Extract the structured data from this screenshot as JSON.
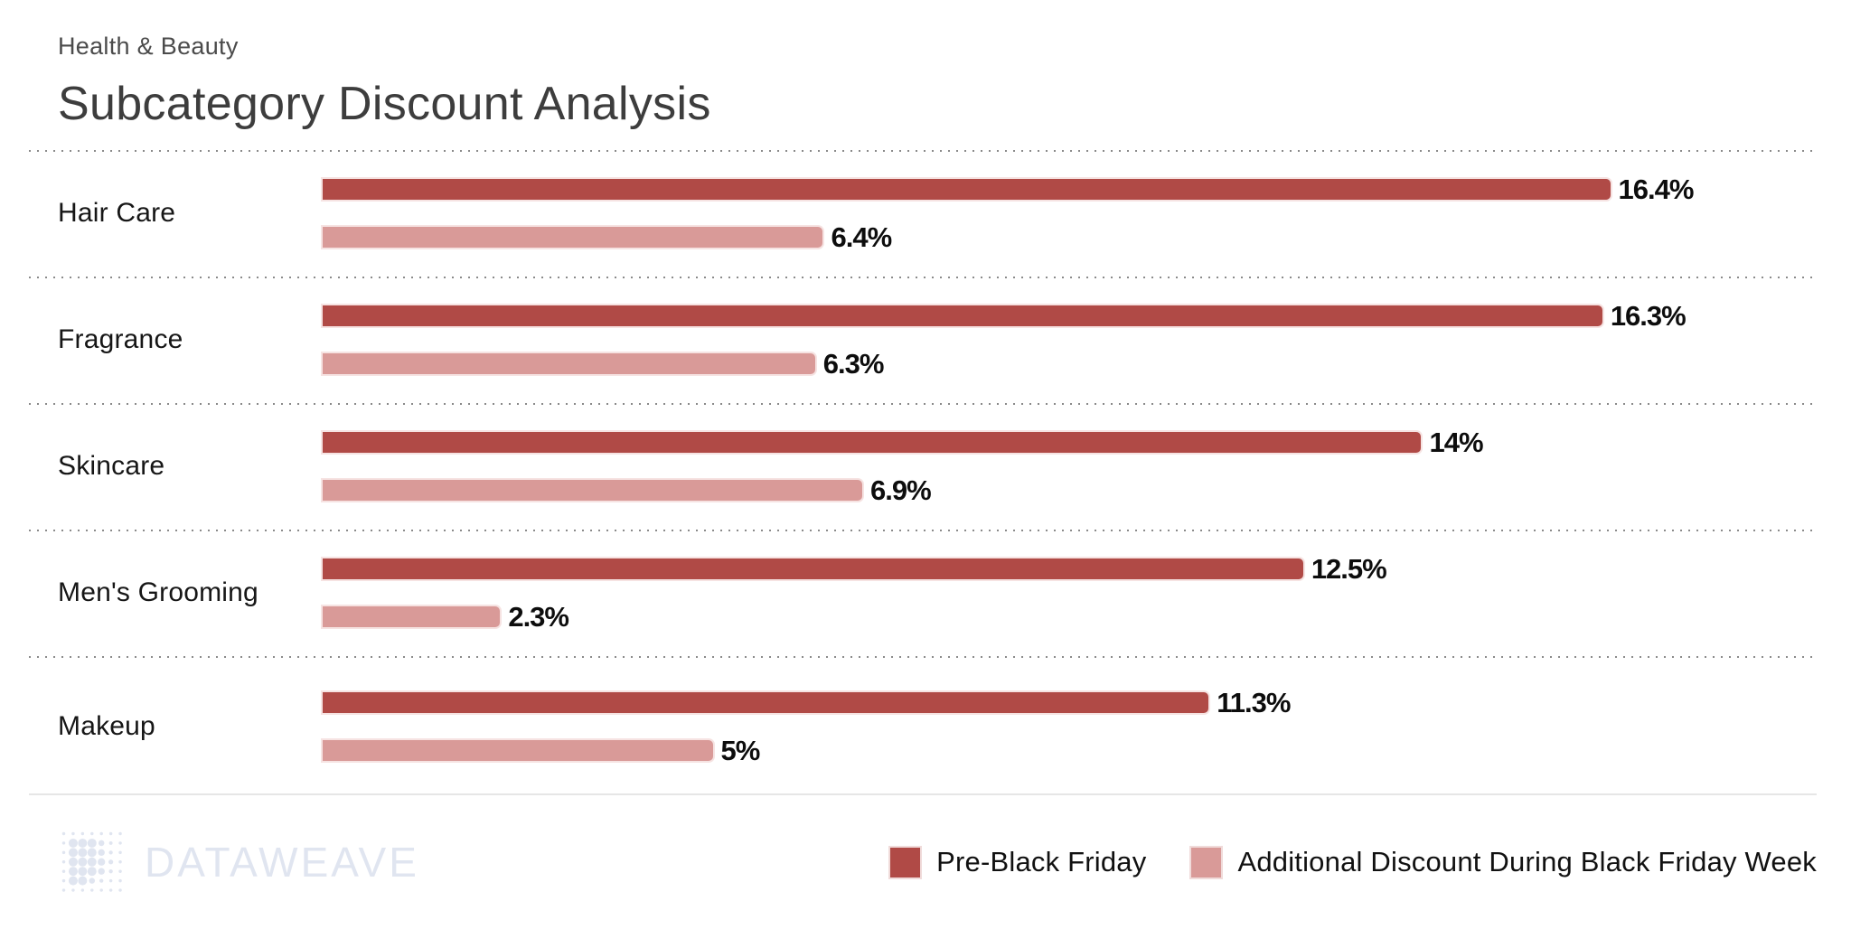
{
  "header": {
    "eyebrow": "Health & Beauty",
    "title": "Subcategory Discount Analysis"
  },
  "chart_data": {
    "type": "bar",
    "orientation": "horizontal",
    "title": "Subcategory Discount Analysis",
    "subtitle": "Health & Beauty",
    "categories": [
      "Hair Care",
      "Fragrance",
      "Skincare",
      "Men's Grooming",
      "Makeup"
    ],
    "series": [
      {
        "name": "Pre-Black Friday",
        "color": "#B04A46",
        "values": [
          16.4,
          16.3,
          14,
          12.5,
          11.3
        ],
        "labels": [
          "16.4%",
          "16.3%",
          "14%",
          "12.5%",
          "11.3%"
        ]
      },
      {
        "name": "Additional Discount During Black Friday Week",
        "color": "#D99A98",
        "values": [
          6.4,
          6.3,
          6.9,
          2.3,
          5
        ],
        "labels": [
          "6.4%",
          "6.3%",
          "6.9%",
          "2.3%",
          "5%"
        ]
      }
    ],
    "xlim": [
      0,
      19
    ],
    "grid": false,
    "value_labels": true,
    "legend_position": "bottom-right",
    "row_separator": "dotted"
  },
  "footer": {
    "logo_text": "DATAWEAVE"
  },
  "colors": {
    "pre_black_friday": "#B04A46",
    "additional_discount": "#D99A98",
    "bar_outline": "#F6E3E2",
    "dotted_divider": "#8A8A8A",
    "solid_divider": "#E6E6E6",
    "logo": "#E0E5F0"
  }
}
